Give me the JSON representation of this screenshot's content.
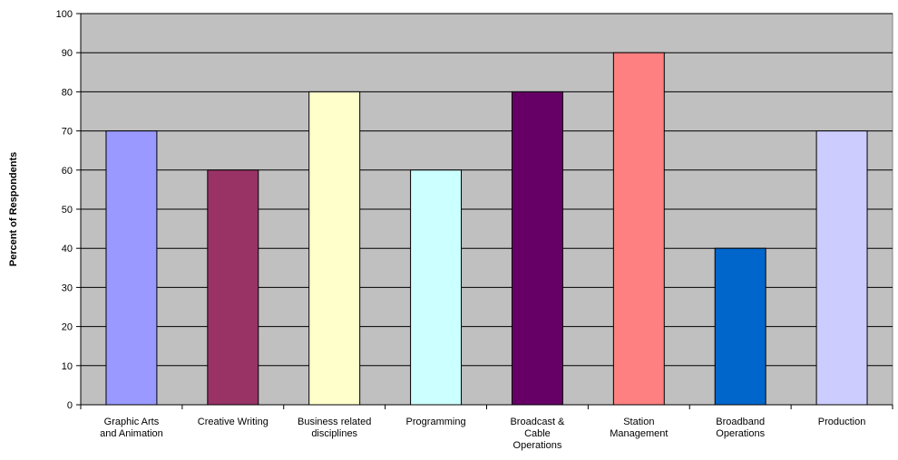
{
  "chart_data": {
    "type": "bar",
    "title": "",
    "xlabel": "",
    "ylabel": "Percent of Respondents",
    "ylim": [
      0,
      100
    ],
    "ytick_step": 10,
    "grid": true,
    "legend": "none",
    "plot_background": "#c0c0c0",
    "categories": [
      [
        "Graphic Arts",
        "and Animation"
      ],
      [
        "Creative Writing"
      ],
      [
        "Business related",
        "disciplines"
      ],
      [
        "Programming"
      ],
      [
        "Broadcast &",
        "Cable",
        "Operations"
      ],
      [
        "Station",
        "Management"
      ],
      [
        "Broadband",
        "Operations"
      ],
      [
        "Production"
      ]
    ],
    "values": [
      70,
      60,
      80,
      60,
      80,
      90,
      40,
      70
    ],
    "bar_colors": [
      "#9999ff",
      "#993366",
      "#ffffcc",
      "#ccffff",
      "#660066",
      "#ff8080",
      "#0066cc",
      "#ccccff"
    ]
  }
}
